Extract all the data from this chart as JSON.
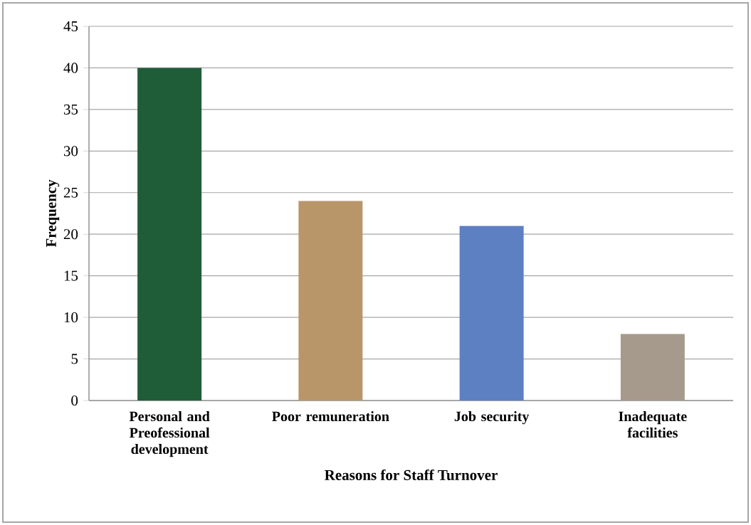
{
  "chart_data": {
    "type": "bar",
    "xlabel": "Reasons for Staff Turnover",
    "ylabel": "Frequency",
    "categories": [
      "Personal and Preofessional development",
      "Poor remuneration",
      "Job security",
      "Inadequate facilities"
    ],
    "values": [
      40,
      24,
      21,
      8
    ],
    "colors": [
      "#1f5c38",
      "#b8966a",
      "#5d80c2",
      "#a69a8c"
    ],
    "ylim": [
      0,
      45
    ],
    "yticks": [
      0,
      5,
      10,
      15,
      20,
      25,
      30,
      35,
      40,
      45
    ],
    "grid": "y"
  }
}
